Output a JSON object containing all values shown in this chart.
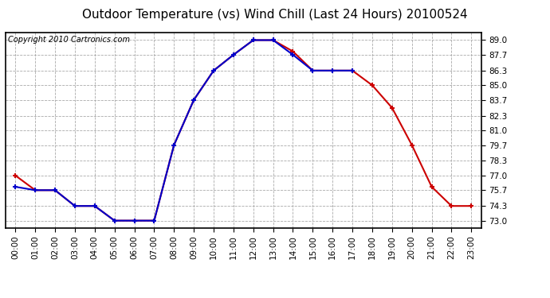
{
  "title": "Outdoor Temperature (vs) Wind Chill (Last 24 Hours) 20100524",
  "copyright": "Copyright 2010 Cartronics.com",
  "hours": [
    "00:00",
    "01:00",
    "02:00",
    "03:00",
    "04:00",
    "05:00",
    "06:00",
    "07:00",
    "08:00",
    "09:00",
    "10:00",
    "11:00",
    "12:00",
    "13:00",
    "14:00",
    "15:00",
    "16:00",
    "17:00",
    "18:00",
    "19:00",
    "20:00",
    "21:00",
    "22:00",
    "23:00"
  ],
  "temp": [
    77.0,
    75.7,
    75.7,
    74.3,
    74.3,
    73.0,
    73.0,
    73.0,
    79.7,
    83.7,
    86.3,
    87.7,
    89.0,
    89.0,
    88.0,
    86.3,
    86.3,
    86.3,
    85.0,
    83.0,
    79.7,
    76.0,
    74.3,
    74.3
  ],
  "windchill": [
    76.0,
    75.7,
    75.7,
    74.3,
    74.3,
    73.0,
    73.0,
    73.0,
    79.7,
    83.7,
    86.3,
    87.7,
    89.0,
    89.0,
    87.7,
    86.3,
    86.3,
    86.3,
    null,
    null,
    null,
    null,
    null,
    null
  ],
  "temp_color": "#cc0000",
  "windchill_color": "#0000cc",
  "bg_color": "#ffffff",
  "grid_color": "#aaaaaa",
  "yticks": [
    73.0,
    74.3,
    75.7,
    77.0,
    78.3,
    79.7,
    81.0,
    82.3,
    83.7,
    85.0,
    86.3,
    87.7,
    89.0
  ],
  "ylim": [
    72.35,
    89.65
  ],
  "title_fontsize": 11,
  "copyright_fontsize": 7,
  "axis_fontsize": 7.5
}
